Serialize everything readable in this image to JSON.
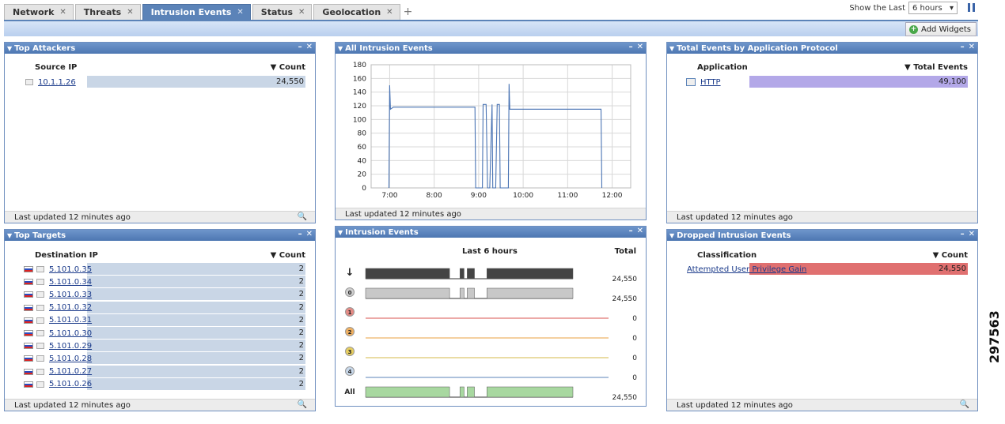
{
  "tabs": [
    {
      "label": "Network",
      "active": false
    },
    {
      "label": "Threats",
      "active": false
    },
    {
      "label": "Intrusion Events",
      "active": true
    },
    {
      "label": "Status",
      "active": false
    },
    {
      "label": "Geolocation",
      "active": false
    }
  ],
  "close_glyph": "✕",
  "add_tab_glyph": "+",
  "header": {
    "show_last_label": "Show the Last",
    "show_last_value": "6 hours",
    "add_widgets_label": "Add Widgets"
  },
  "figure_number": "297563",
  "footer_text": "Last updated 12 minutes ago",
  "widgets": {
    "top_attackers": {
      "title": "Top Attackers",
      "col1": "Source IP",
      "col2": "▼ Count",
      "rows": [
        {
          "label": "10.1.1.26",
          "value": "24,550",
          "fraction": 1.0
        }
      ]
    },
    "all_intrusion_events": {
      "title": "All Intrusion Events"
    },
    "total_events_app": {
      "title": "Total Events by Application Protocol",
      "col1": "Application",
      "col2": "▼ Total Events",
      "rows": [
        {
          "label": "HTTP",
          "value": "49,100",
          "fraction": 1.0
        }
      ]
    },
    "top_targets": {
      "title": "Top Targets",
      "col1": "Destination IP",
      "col2": "▼ Count",
      "rows": [
        {
          "label": "5.101.0.35",
          "value": "2"
        },
        {
          "label": "5.101.0.34",
          "value": "2"
        },
        {
          "label": "5.101.0.33",
          "value": "2"
        },
        {
          "label": "5.101.0.32",
          "value": "2"
        },
        {
          "label": "5.101.0.31",
          "value": "2"
        },
        {
          "label": "5.101.0.30",
          "value": "2"
        },
        {
          "label": "5.101.0.29",
          "value": "2"
        },
        {
          "label": "5.101.0.28",
          "value": "2"
        },
        {
          "label": "5.101.0.27",
          "value": "2"
        },
        {
          "label": "5.101.0.26",
          "value": "2"
        }
      ]
    },
    "intrusion_events": {
      "title": "Intrusion Events",
      "col_mid": "Last 6 hours",
      "col_right": "Total",
      "rows": [
        {
          "badge": "↓",
          "value": "24,550",
          "color": "#444444",
          "kind": "fill"
        },
        {
          "badge": "0",
          "value": "24,550",
          "color": "#c8c8c8",
          "kind": "fill"
        },
        {
          "badge": "1",
          "value": "0",
          "color": "#d9534f",
          "kind": "line"
        },
        {
          "badge": "2",
          "value": "0",
          "color": "#e8a040",
          "kind": "line"
        },
        {
          "badge": "3",
          "value": "0",
          "color": "#d4b84a",
          "kind": "line"
        },
        {
          "badge": "4",
          "value": "0",
          "color": "#5b83b8",
          "kind": "line"
        },
        {
          "badge": "All",
          "value": "24,550",
          "color": "#a8d8a0",
          "kind": "fill"
        }
      ]
    },
    "dropped_intrusion_events": {
      "title": "Dropped Intrusion Events",
      "col1": "Classification",
      "col2": "▼ Count",
      "rows": [
        {
          "label": "Attempted User Privilege Gain",
          "value": "24,550",
          "fraction": 1.0
        }
      ]
    }
  },
  "chart_data": {
    "type": "line",
    "title": "",
    "xlabel": "",
    "ylabel": "",
    "ylim": [
      0,
      180
    ],
    "yticks": [
      0,
      20,
      40,
      60,
      80,
      100,
      120,
      140,
      160,
      180
    ],
    "xticks": [
      "7:00",
      "8:00",
      "9:00",
      "10:00",
      "11:00",
      "12:00"
    ],
    "grid": true,
    "series": [
      {
        "x": [
          "6:59",
          "7:00",
          "7:01",
          "7:05",
          "7:30",
          "8:00",
          "8:30",
          "8:55",
          "8:56",
          "9:00",
          "9:05",
          "9:06",
          "9:10",
          "9:12",
          "9:15",
          "9:18",
          "9:19",
          "9:23",
          "9:25",
          "9:28",
          "9:29",
          "9:33",
          "9:40",
          "9:41",
          "9:42",
          "10:00",
          "10:30",
          "11:00",
          "11:30",
          "11:45",
          "11:46"
        ],
        "y": [
          0,
          150,
          115,
          118,
          118,
          118,
          118,
          118,
          0,
          0,
          0,
          122,
          122,
          0,
          0,
          122,
          0,
          0,
          122,
          122,
          0,
          0,
          0,
          152,
          115,
          115,
          115,
          115,
          115,
          115,
          0
        ]
      }
    ]
  }
}
